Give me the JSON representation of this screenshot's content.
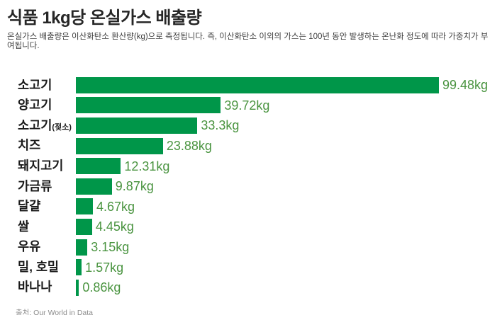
{
  "chart_data": {
    "type": "bar",
    "orientation": "horizontal",
    "title": "식품 1kg당 온실가스 배출량",
    "subtitle": "온실가스 배출량은 이산화탄소 환산량(kg)으로 측정됩니다. 즉, 이산화탄소 이외의 가스는 100년 동안 발생하는 온난화 정도에 따라 가중치가 부여됩니다.",
    "categories": [
      "소고기",
      "양고기",
      "소고기(젖소)",
      "치즈",
      "돼지고기",
      "가금류",
      "달걀",
      "쌀",
      "우유",
      "밀, 호밀",
      "바나나"
    ],
    "values": [
      99.48,
      39.72,
      33.3,
      23.88,
      12.31,
      9.87,
      4.67,
      4.45,
      3.15,
      1.57,
      0.86
    ],
    "value_labels": [
      "99.48kg",
      "39.72kg",
      "33.3kg",
      "23.88kg",
      "12.31kg",
      "9.87kg",
      "4.67kg",
      "4.45kg",
      "3.15kg",
      "1.57kg",
      "0.86kg"
    ],
    "unit": "kg",
    "xlim": [
      0,
      103
    ],
    "grid": false,
    "legend": false,
    "bar_color": "#009649",
    "value_label_color": "#4a9440",
    "category_label_color": "#1a1a1a"
  },
  "footer": {
    "source_prefix": "출처: Our ",
    "source_link": "World in Data"
  }
}
